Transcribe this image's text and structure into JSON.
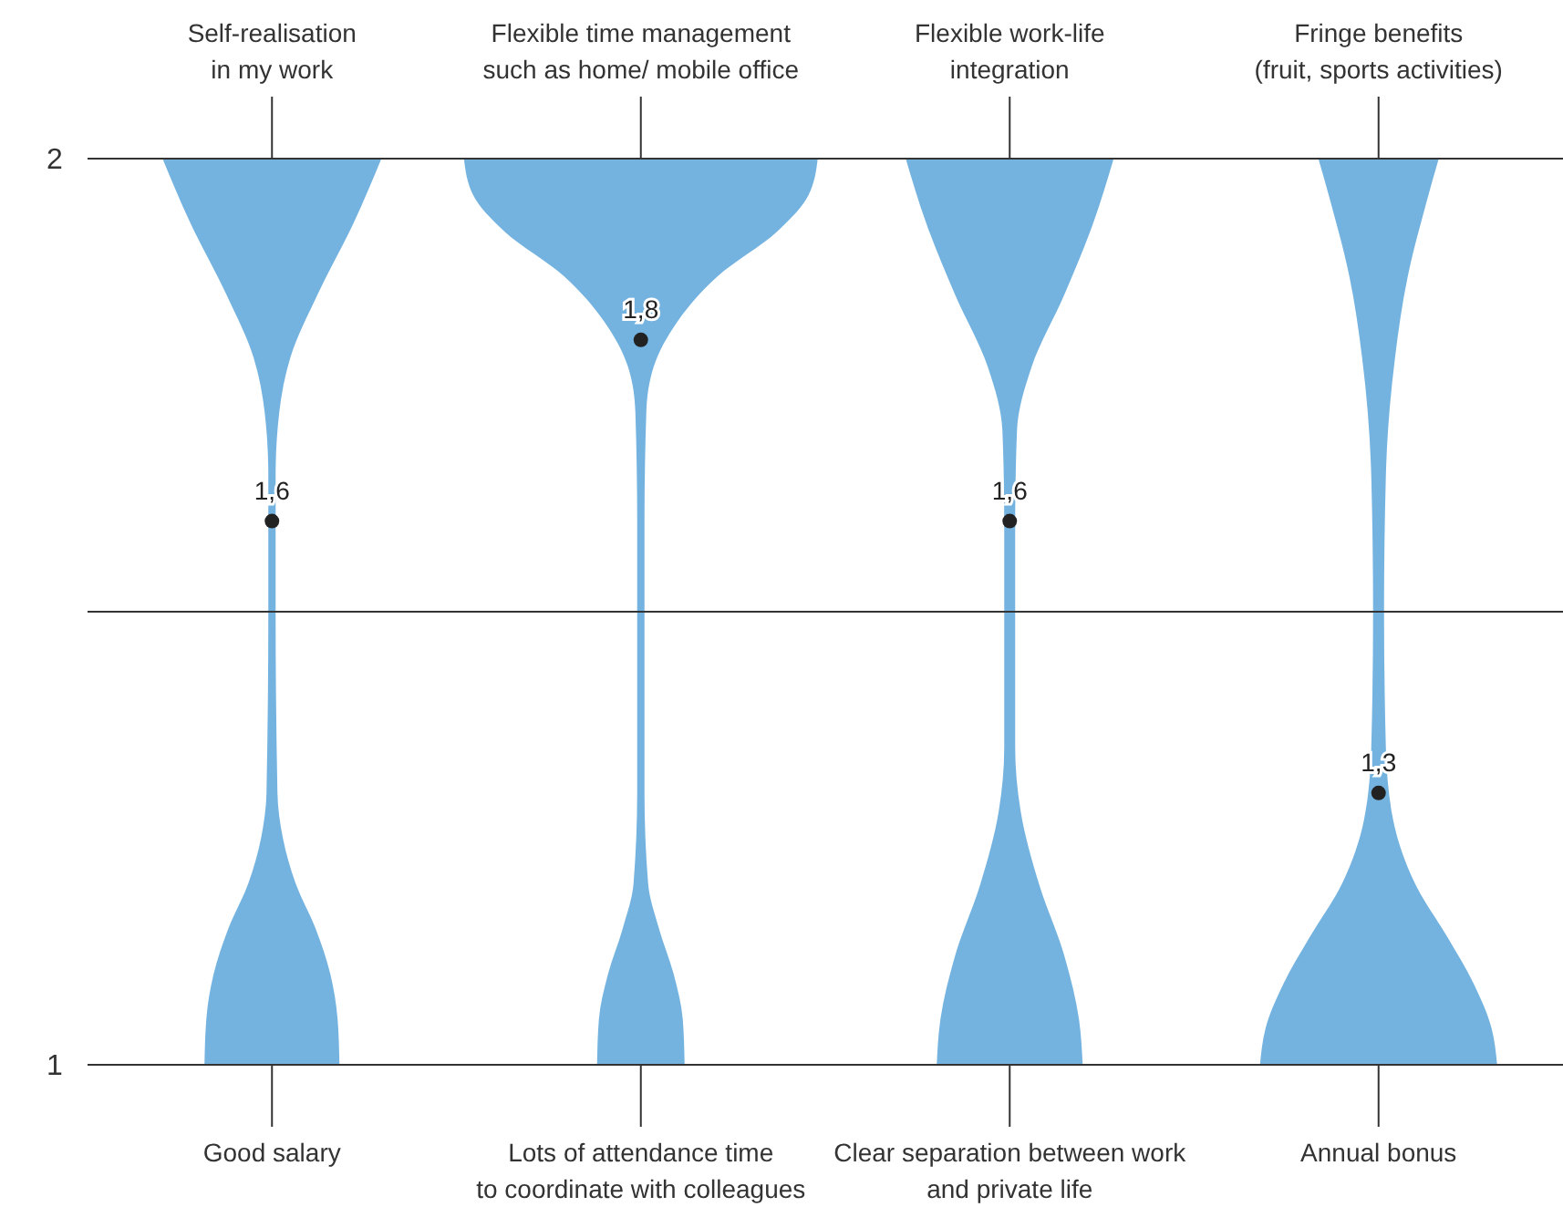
{
  "chart_data": {
    "type": "scatter",
    "categories": [
      "Good salary",
      "Lots of attendance time\nto coordinate with colleagues",
      "Clear separation between work\nand private life",
      "Annual bonus"
    ],
    "values": [
      1.6,
      1.8,
      1.6,
      1.3
    ],
    "value_labels": [
      "1,6",
      "1,8",
      "1,6",
      "1,3"
    ],
    "color": "#222222",
    "marker": "circle",
    "ylim": [
      1,
      2
    ],
    "yticks": [
      1,
      {
        "value": 1.5,
        "label": null
      },
      2
    ],
    "grid": "y",
    "annotations": [
      "Self-realisation\nin my work",
      "Flexible time management\nsuch as home/ mobile office",
      "Flexible work-life\nintegration",
      "Fringe benefits\n(fruit, sports activities)"
    ]
  }
}
